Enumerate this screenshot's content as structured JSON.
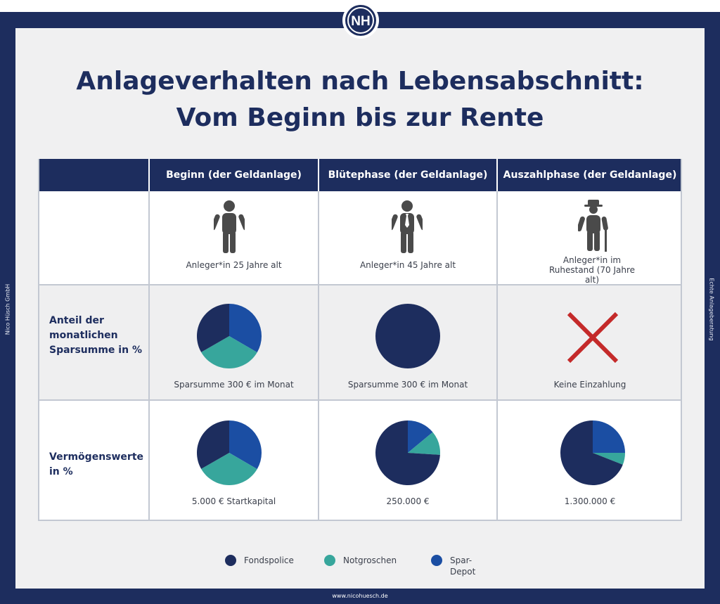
{
  "page": {
    "side_left": "Nico Hüsch GmbH",
    "side_right": "Echte Anlageberatung",
    "footer_url": "www.nicohuesch.de"
  },
  "logo": {
    "letters": "NH"
  },
  "title": {
    "line1": "Anlageverhalten nach Lebensabschnitt:",
    "line2": "Vom Beginn bis zur Rente"
  },
  "colors": {
    "fondspolice": "#1d2d5e",
    "notgroschen": "#37a69c",
    "spar_depot": "#1b4ea3",
    "cross": "#c42a2a",
    "person": "#4a4a4a"
  },
  "columns": [
    {
      "header": "Beginn (der Geldanlage)",
      "person_icon": "young-person-icon",
      "person_caption": "Anleger*in 25 Jahre alt",
      "savings_caption": "Sparsumme 300 € im Monat",
      "assets_caption": "5.000 € Startkapital"
    },
    {
      "header": "Blütephase (der Geldanlage)",
      "person_icon": "adult-person-icon",
      "person_caption": "Anleger*in 45 Jahre alt",
      "savings_caption": "Sparsumme 300 € im Monat",
      "assets_caption": "250.000 €"
    },
    {
      "header": "Auszahlphase (der Geldanlage)",
      "person_icon": "elderly-person-icon",
      "person_caption": "Anleger*in im Ruhestand (70 Jahre alt)",
      "savings_caption": "Keine Einzahlung",
      "assets_caption": "1.300.000 €"
    }
  ],
  "rows": {
    "savings_label": "Anteil der monatlichen Sparsumme in %",
    "assets_label": "Vermögenswerte in %"
  },
  "chart_data": [
    {
      "type": "pie",
      "title": "Anteil der monatlichen Sparsumme in % – Beginn",
      "labels": [
        "Fondspolice",
        "Notgroschen",
        "Spar-Depot"
      ],
      "values": [
        33.3,
        33.3,
        33.4
      ]
    },
    {
      "type": "pie",
      "title": "Anteil der monatlichen Sparsumme in % – Blütephase",
      "labels": [
        "Fondspolice",
        "Notgroschen",
        "Spar-Depot"
      ],
      "values": [
        100,
        0,
        0
      ]
    },
    {
      "type": "pie",
      "title": "Vermögenswerte in % – Beginn",
      "labels": [
        "Fondspolice",
        "Notgroschen",
        "Spar-Depot"
      ],
      "values": [
        33.3,
        33.3,
        33.4
      ]
    },
    {
      "type": "pie",
      "title": "Vermögenswerte in % – Blütephase",
      "labels": [
        "Fondspolice",
        "Notgroschen",
        "Spar-Depot"
      ],
      "values": [
        74,
        12,
        14
      ]
    },
    {
      "type": "pie",
      "title": "Vermögenswerte in % – Auszahlphase",
      "labels": [
        "Fondspolice",
        "Notgroschen",
        "Spar-Depot"
      ],
      "values": [
        69,
        6,
        25
      ]
    }
  ],
  "legend": [
    {
      "label": "Fondspolice",
      "color": "#1d2d5e"
    },
    {
      "label": "Notgroschen",
      "color": "#37a69c"
    },
    {
      "label": "Spar-Depot",
      "color": "#1b4ea3"
    }
  ]
}
